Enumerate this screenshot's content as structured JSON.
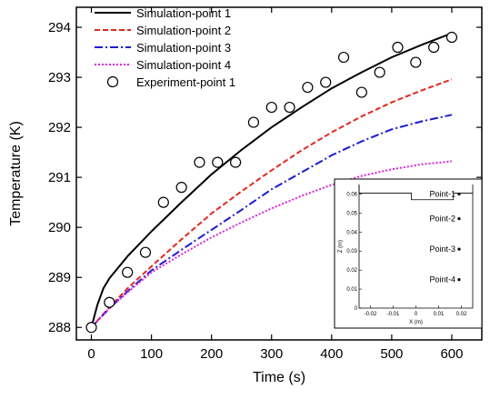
{
  "chart_data": {
    "type": "line",
    "xlabel": "Time (s)",
    "ylabel": "Temperature (K)",
    "xlim": [
      -25,
      650
    ],
    "ylim": [
      287.75,
      294.4
    ],
    "xticks": [
      0,
      100,
      200,
      300,
      400,
      500,
      600
    ],
    "yticks": [
      288,
      289,
      290,
      291,
      292,
      293,
      294
    ],
    "legend_position": "top-left",
    "series": [
      {
        "name": "Simulation-point 1",
        "kind": "line",
        "color": "#000000",
        "dash": "solid",
        "x": [
          0,
          10,
          20,
          30,
          60,
          100,
          150,
          200,
          250,
          300,
          350,
          400,
          450,
          500,
          550,
          600
        ],
        "y": [
          288.0,
          288.45,
          288.78,
          288.98,
          289.42,
          289.92,
          290.5,
          291.06,
          291.55,
          292.0,
          292.4,
          292.78,
          293.1,
          293.4,
          293.65,
          293.88
        ]
      },
      {
        "name": "Simulation-point 2",
        "kind": "line",
        "color": "#e8261c",
        "dash": "dashed",
        "x": [
          0,
          30,
          60,
          100,
          150,
          200,
          250,
          300,
          350,
          400,
          450,
          500,
          550,
          600
        ],
        "y": [
          288.0,
          288.4,
          288.78,
          289.22,
          289.76,
          290.28,
          290.72,
          291.14,
          291.54,
          291.9,
          292.22,
          292.5,
          292.74,
          292.96
        ]
      },
      {
        "name": "Simulation-point 3",
        "kind": "line",
        "color": "#1a1adc",
        "dash": "dashdot",
        "x": [
          0,
          30,
          60,
          100,
          150,
          200,
          250,
          300,
          350,
          400,
          450,
          500,
          550,
          600
        ],
        "y": [
          288.0,
          288.38,
          288.72,
          289.14,
          289.55,
          289.95,
          290.35,
          290.76,
          291.1,
          291.44,
          291.72,
          291.96,
          292.12,
          292.25
        ]
      },
      {
        "name": "Simulation-point 4",
        "kind": "line",
        "color": "#e020e0",
        "dash": "dotted",
        "x": [
          0,
          30,
          60,
          100,
          150,
          200,
          250,
          300,
          350,
          400,
          450,
          500,
          550,
          600
        ],
        "y": [
          288.0,
          288.38,
          288.7,
          289.1,
          289.46,
          289.8,
          290.1,
          290.38,
          290.63,
          290.85,
          291.03,
          291.16,
          291.26,
          291.32
        ]
      },
      {
        "name": "Experiment-point 1",
        "kind": "scatter",
        "color": "#000000",
        "marker": "open-circle",
        "x": [
          0,
          30,
          60,
          90,
          120,
          150,
          180,
          210,
          240,
          270,
          300,
          330,
          360,
          390,
          420,
          450,
          480,
          510,
          540,
          570,
          600
        ],
        "y": [
          288.0,
          288.5,
          289.1,
          289.5,
          290.5,
          290.8,
          291.3,
          291.3,
          291.3,
          292.1,
          292.4,
          292.4,
          292.8,
          292.9,
          293.4,
          292.7,
          293.1,
          293.6,
          293.3,
          293.6,
          293.8
        ]
      }
    ],
    "inset": {
      "xlabel": "X (m)",
      "ylabel": "Z (m)",
      "xlim": [
        -0.025,
        0.025
      ],
      "ylim": [
        0,
        0.065
      ],
      "xticks": [
        "-0.02",
        "-0.01",
        "0",
        "0.01",
        "0.02"
      ],
      "yticks": [
        "0",
        "0.01",
        "0.02",
        "0.03",
        "0.04",
        "0.05",
        "0.06"
      ],
      "points": [
        {
          "label": "Point-1",
          "x": 0.019,
          "z": 0.06
        },
        {
          "label": "Point-2",
          "x": 0.019,
          "z": 0.047
        },
        {
          "label": "Point-3",
          "x": 0.019,
          "z": 0.031
        },
        {
          "label": "Point-4",
          "x": 0.019,
          "z": 0.015
        }
      ]
    }
  }
}
